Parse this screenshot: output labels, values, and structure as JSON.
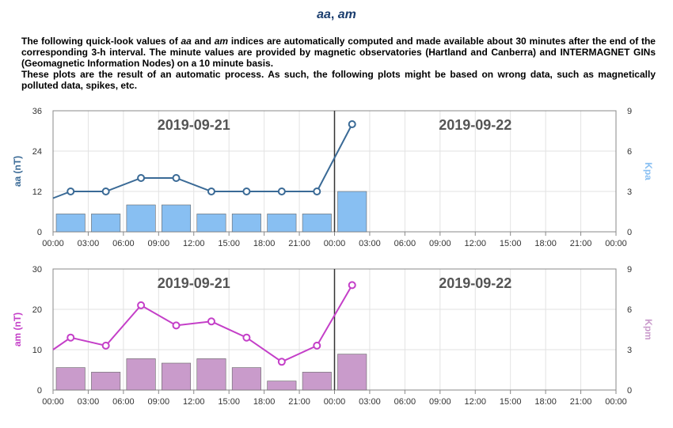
{
  "page": {
    "title_a": "aa",
    "title_sep": ", ",
    "title_b": "am",
    "desc_1a": "The following quick-look values of ",
    "desc_1b": "aa",
    "desc_1c": " and ",
    "desc_1d": "am",
    "desc_1e": " indices are automatically computed and made available about 30 minutes after the end of the corresponding 3-h interval. The minute values are provided by magnetic observatories (Hartland and Canberra) and INTERMAGNET GINs (Geomagnetic Information Nodes) on a 10 minute basis.",
    "desc_2": "These plots are the result of an automatic process. As such, the following plots might be based on wrong data, such as magnetically polluted data, spikes, etc."
  },
  "chart_data": [
    {
      "type": "bar+line",
      "day_labels": [
        "2019-09-21",
        "2019-09-22"
      ],
      "x_tick_labels": [
        "00:00",
        "03:00",
        "06:00",
        "09:00",
        "12:00",
        "15:00",
        "18:00",
        "21:00",
        "00:00",
        "03:00",
        "06:00",
        "09:00",
        "12:00",
        "15:00",
        "18:00",
        "21:00",
        "00:00"
      ],
      "x_range_hours": [
        0,
        48
      ],
      "ylabel_left": "aa (nT)",
      "ylabel_right": "Kpa",
      "ylim_left": [
        0,
        36
      ],
      "yticks_left": [
        "0",
        "12",
        "24",
        "36"
      ],
      "ylim_right": [
        0,
        9
      ],
      "yticks_right": [
        "0",
        "3",
        "6",
        "9"
      ],
      "bars": {
        "name": "Kpa",
        "color": "#88bff2",
        "x_center_hours": [
          1.5,
          4.5,
          7.5,
          10.5,
          13.5,
          16.5,
          19.5,
          22.5,
          25.5
        ],
        "values": [
          1.33,
          1.33,
          2.0,
          2.0,
          1.33,
          1.33,
          1.33,
          1.33,
          3.0
        ]
      },
      "line": {
        "name": "aa",
        "color": "#3a6a96",
        "x_hours": [
          0,
          1.5,
          4.5,
          7.5,
          10.5,
          13.5,
          16.5,
          19.5,
          22.5,
          25.5
        ],
        "values": [
          10,
          12,
          12,
          16,
          16,
          12,
          12,
          12,
          12,
          32
        ],
        "marker_from_index": 1
      },
      "grid": true
    },
    {
      "type": "bar+line",
      "day_labels": [
        "2019-09-21",
        "2019-09-22"
      ],
      "x_tick_labels": [
        "00:00",
        "03:00",
        "06:00",
        "09:00",
        "12:00",
        "15:00",
        "18:00",
        "21:00",
        "00:00",
        "03:00",
        "06:00",
        "09:00",
        "12:00",
        "15:00",
        "18:00",
        "21:00",
        "00:00"
      ],
      "x_range_hours": [
        0,
        48
      ],
      "ylabel_left": "am (nT)",
      "ylabel_right": "Kpm",
      "ylim_left": [
        0,
        30
      ],
      "yticks_left": [
        "0",
        "10",
        "20",
        "30"
      ],
      "ylim_right": [
        0,
        9
      ],
      "yticks_right": [
        "0",
        "3",
        "6",
        "9"
      ],
      "bars": {
        "name": "Kpm",
        "color": "#c99bcb",
        "x_center_hours": [
          1.5,
          4.5,
          7.5,
          10.5,
          13.5,
          16.5,
          19.5,
          22.5,
          25.5
        ],
        "values": [
          1.67,
          1.33,
          2.33,
          2.0,
          2.33,
          1.67,
          0.67,
          1.33,
          2.67
        ]
      },
      "line": {
        "name": "am",
        "color": "#c43fc8",
        "x_hours": [
          0,
          1.5,
          4.5,
          7.5,
          10.5,
          13.5,
          16.5,
          19.5,
          22.5,
          25.5
        ],
        "values": [
          10,
          13,
          11,
          21,
          16,
          17,
          13,
          7,
          11,
          26
        ],
        "marker_from_index": 1
      },
      "grid": true
    }
  ]
}
